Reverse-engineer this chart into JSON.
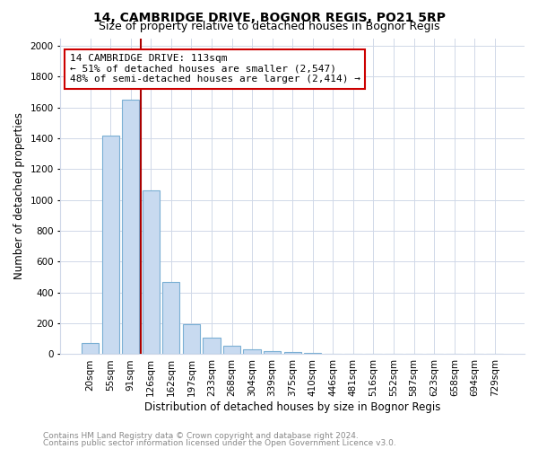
{
  "title": "14, CAMBRIDGE DRIVE, BOGNOR REGIS, PO21 5RP",
  "subtitle": "Size of property relative to detached houses in Bognor Regis",
  "xlabel": "Distribution of detached houses by size in Bognor Regis",
  "ylabel": "Number of detached properties",
  "footnote1": "Contains HM Land Registry data © Crown copyright and database right 2024.",
  "footnote2": "Contains public sector information licensed under the Open Government Licence v3.0.",
  "annotation_line1": "14 CAMBRIDGE DRIVE: 113sqm",
  "annotation_line2": "← 51% of detached houses are smaller (2,547)",
  "annotation_line3": "48% of semi-detached houses are larger (2,414) →",
  "bar_labels": [
    "20sqm",
    "55sqm",
    "91sqm",
    "126sqm",
    "162sqm",
    "197sqm",
    "233sqm",
    "268sqm",
    "304sqm",
    "339sqm",
    "375sqm",
    "410sqm",
    "446sqm",
    "481sqm",
    "516sqm",
    "552sqm",
    "587sqm",
    "623sqm",
    "658sqm",
    "694sqm",
    "729sqm"
  ],
  "bar_heights": [
    70,
    1420,
    1650,
    1060,
    470,
    195,
    105,
    55,
    30,
    18,
    12,
    8,
    5,
    4,
    3,
    2,
    2,
    1,
    1,
    1,
    1
  ],
  "bar_fill_color": "#c8daf0",
  "bar_edge_color": "#7aafd4",
  "property_line_color": "#aa0000",
  "annotation_box_edge_color": "#cc0000",
  "ylim": [
    0,
    2050
  ],
  "yticks": [
    0,
    200,
    400,
    600,
    800,
    1000,
    1200,
    1400,
    1600,
    1800,
    2000
  ],
  "grid_color": "#d0d8e8",
  "background_color": "#ffffff",
  "title_fontsize": 10,
  "subtitle_fontsize": 9,
  "axis_label_fontsize": 8.5,
  "tick_fontsize": 7.5,
  "footnote_fontsize": 6.5,
  "annotation_fontsize": 8
}
